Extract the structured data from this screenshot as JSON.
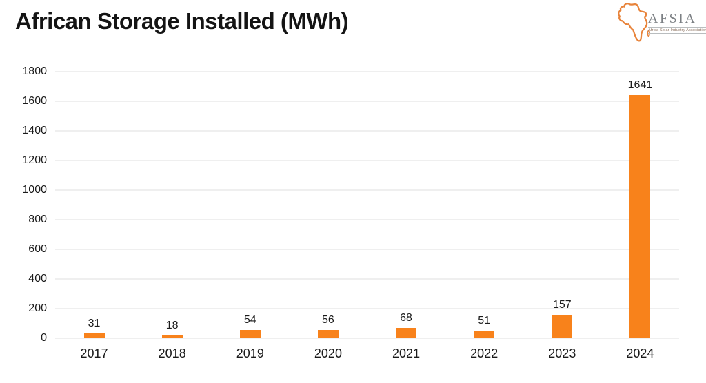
{
  "header": {
    "title": "African Storage Installed (MWh)",
    "logo": {
      "wordmark": "AFSIA",
      "tagline": "Africa Solar Industry Association",
      "accent_color": "#E8833A",
      "text_color": "#7c8084"
    }
  },
  "chart_data": {
    "type": "bar",
    "title": "African Storage Installed (MWh)",
    "categories": [
      "2017",
      "2018",
      "2019",
      "2020",
      "2021",
      "2022",
      "2023",
      "2024"
    ],
    "values": [
      31,
      18,
      54,
      56,
      68,
      51,
      157,
      1641
    ],
    "xlabel": "",
    "ylabel": "",
    "ylim": [
      0,
      1800
    ],
    "ytick_step": 200,
    "grid": true,
    "legend": false,
    "value_labels": true,
    "bar_color": "#F8821B",
    "grid_color": "#efefef",
    "text_color": "#1b1b1b"
  }
}
